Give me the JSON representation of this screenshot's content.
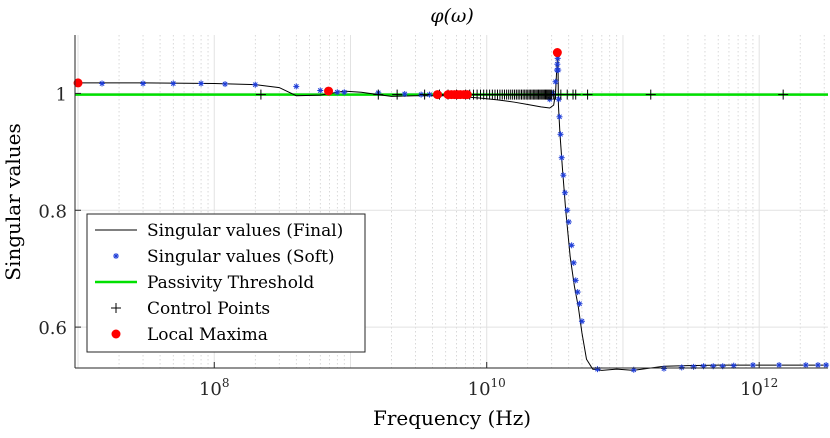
{
  "chart_data": {
    "type": "line",
    "title": "φ(ω)",
    "xlabel": "Frequency (Hz)",
    "ylabel": "Singular values",
    "xscale": "log",
    "xlim": [
      9500000.0,
      3200000000000.0
    ],
    "ylim": [
      0.53,
      1.1
    ],
    "xticks": [
      {
        "value": 100000000.0,
        "base": "10",
        "exp": "8"
      },
      {
        "value": 10000000000.0,
        "base": "10",
        "exp": "10"
      },
      {
        "value": 1000000000000.0,
        "base": "10",
        "exp": "12"
      }
    ],
    "yticks": [
      {
        "value": 0.6,
        "label": "0.6"
      },
      {
        "value": 0.8,
        "label": "0.8"
      },
      {
        "value": 1.0,
        "label": "1"
      }
    ],
    "grid": true,
    "legend_position": "bottom-left",
    "legend": [
      {
        "label": "Singular values (Final)",
        "marker": "line",
        "color": "#000000"
      },
      {
        "label": "Singular values (Soft)",
        "marker": "asterisk",
        "color": "#1f3ed8"
      },
      {
        "label": "Passivity Threshold",
        "marker": "line",
        "color": "#00e000"
      },
      {
        "label": "Control Points",
        "marker": "plus",
        "color": "#000000"
      },
      {
        "label": "Local Maxima",
        "marker": "dot",
        "color": "#ff0000"
      }
    ],
    "series": [
      {
        "name": "Singular values (Final)",
        "color": "#000000",
        "x": [
          10000000.0,
          30000000.0,
          100000000.0,
          200000000.0,
          300000000.0,
          400000000.0,
          600000000.0,
          900000000.0,
          1200000000.0,
          1600000000.0,
          2000000000.0,
          3000000000.0,
          5000000000.0,
          7000000000.0,
          9000000000.0,
          12000000000.0,
          16000000000.0,
          20000000000.0,
          25000000000.0,
          29000000000.0,
          31000000000.0,
          32000000000.0,
          32700000000.0,
          33300000000.0,
          33600000000.0,
          34500000000.0,
          36000000000.0,
          38000000000.0,
          41000000000.0,
          44000000000.0,
          47000000000.0,
          50000000000.0,
          54000000000.0,
          60000000000.0,
          70000000000.0,
          90000000000.0,
          120000000000.0,
          160000000000.0,
          200000000000.0,
          300000000000.0,
          500000000000.0,
          1000000000000.0,
          3200000000000.0
        ],
        "y": [
          1.018,
          1.018,
          1.017,
          1.015,
          1.01,
          0.996,
          0.997,
          1.004,
          1.002,
          0.998,
          0.995,
          0.996,
          0.996,
          0.994,
          0.992,
          0.989,
          0.985,
          0.981,
          0.977,
          0.975,
          0.98,
          1.0,
          1.045,
          1.07,
          0.98,
          0.93,
          0.87,
          0.8,
          0.72,
          0.67,
          0.635,
          0.59,
          0.545,
          0.528,
          0.526,
          0.528,
          0.526,
          0.53,
          0.533,
          0.534,
          0.535,
          0.535,
          0.535
        ]
      },
      {
        "name": "Singular values (Soft)",
        "color": "#1f3ed8",
        "x": [
          15000000.0,
          30000000.0,
          50000000.0,
          80000000.0,
          120000000.0,
          200000000.0,
          400000000.0,
          600000000.0,
          800000000.0,
          900000000.0,
          1600000000.0,
          2500000000.0,
          3300000000.0,
          3800000000.0,
          4500000000.0,
          29000000000.0,
          30500000000.0,
          32000000000.0,
          32800000000.0,
          33000000000.0,
          33200000000.0,
          33500000000.0,
          33800000000.0,
          34200000000.0,
          34800000000.0,
          35500000000.0,
          36500000000.0,
          37500000000.0,
          39000000000.0,
          40000000000.0,
          42000000000.0,
          43500000000.0,
          45000000000.0,
          46500000000.0,
          48000000000.0,
          50000000000.0,
          65000000000.0,
          120000000000.0,
          200000000000.0,
          270000000000.0,
          330000000000.0,
          390000000000.0,
          460000000000.0,
          540000000000.0,
          650000000000.0,
          900000000000.0,
          1400000000000.0,
          2200000000000.0,
          2700000000000.0,
          3100000000000.0
        ],
        "y": [
          1.017,
          1.017,
          1.017,
          1.017,
          1.016,
          1.015,
          1.012,
          1.005,
          1.002,
          1.002,
          1.001,
          0.999,
          0.998,
          0.998,
          0.998,
          0.99,
          1.0,
          1.02,
          1.04,
          1.05,
          1.06,
          1.04,
          0.99,
          0.96,
          0.93,
          0.89,
          0.86,
          0.83,
          0.8,
          0.78,
          0.74,
          0.71,
          0.68,
          0.66,
          0.64,
          0.61,
          0.528,
          0.527,
          0.529,
          0.531,
          0.532,
          0.533,
          0.533,
          0.533,
          0.534,
          0.535,
          0.535,
          0.535,
          0.535,
          0.535
        ]
      },
      {
        "name": "Passivity Threshold",
        "color": "#00e000",
        "x": [
          9500000.0,
          3200000000000.0
        ],
        "y": [
          0.998,
          0.998
        ]
      }
    ],
    "control_points": {
      "y": 0.998,
      "x": [
        220000000.0,
        1600000000.0,
        2200000000.0,
        3500000000.0,
        4500000000.0,
        5200000000.0,
        6000000000.0,
        7000000000.0,
        7500000000.0,
        8000000000.0,
        8500000000.0,
        9000000000.0,
        9500000000.0,
        10000000000.0,
        10500000000.0,
        11000000000.0,
        11500000000.0,
        12000000000.0,
        12500000000.0,
        13000000000.0,
        13500000000.0,
        14000000000.0,
        14500000000.0,
        15000000000.0,
        15500000000.0,
        16000000000.0,
        16500000000.0,
        17000000000.0,
        17500000000.0,
        18000000000.0,
        18500000000.0,
        19000000000.0,
        19500000000.0,
        20000000000.0,
        20500000000.0,
        21000000000.0,
        21500000000.0,
        22000000000.0,
        22500000000.0,
        23000000000.0,
        23500000000.0,
        24000000000.0,
        24500000000.0,
        25000000000.0,
        25500000000.0,
        26000000000.0,
        26500000000.0,
        27000000000.0,
        27500000000.0,
        28000000000.0,
        28500000000.0,
        29000000000.0,
        29500000000.0,
        30000000000.0,
        31000000000.0,
        32000000000.0,
        35000000000.0,
        39000000000.0,
        43000000000.0,
        45000000000.0,
        55000000000.0,
        160000000000.0,
        1500000000000.0
      ]
    },
    "local_maxima": {
      "x": [
        10000000.0,
        690000000.0,
        4350000000.0,
        5200000000.0,
        5500000000.0,
        5800000000.0,
        6100000000.0,
        6400000000.0,
        6800000000.0,
        7200000000.0,
        33000000000.0
      ],
      "y": [
        1.018,
        1.004,
        0.998,
        0.998,
        0.998,
        0.998,
        0.998,
        0.998,
        0.998,
        0.998,
        1.07
      ]
    }
  }
}
